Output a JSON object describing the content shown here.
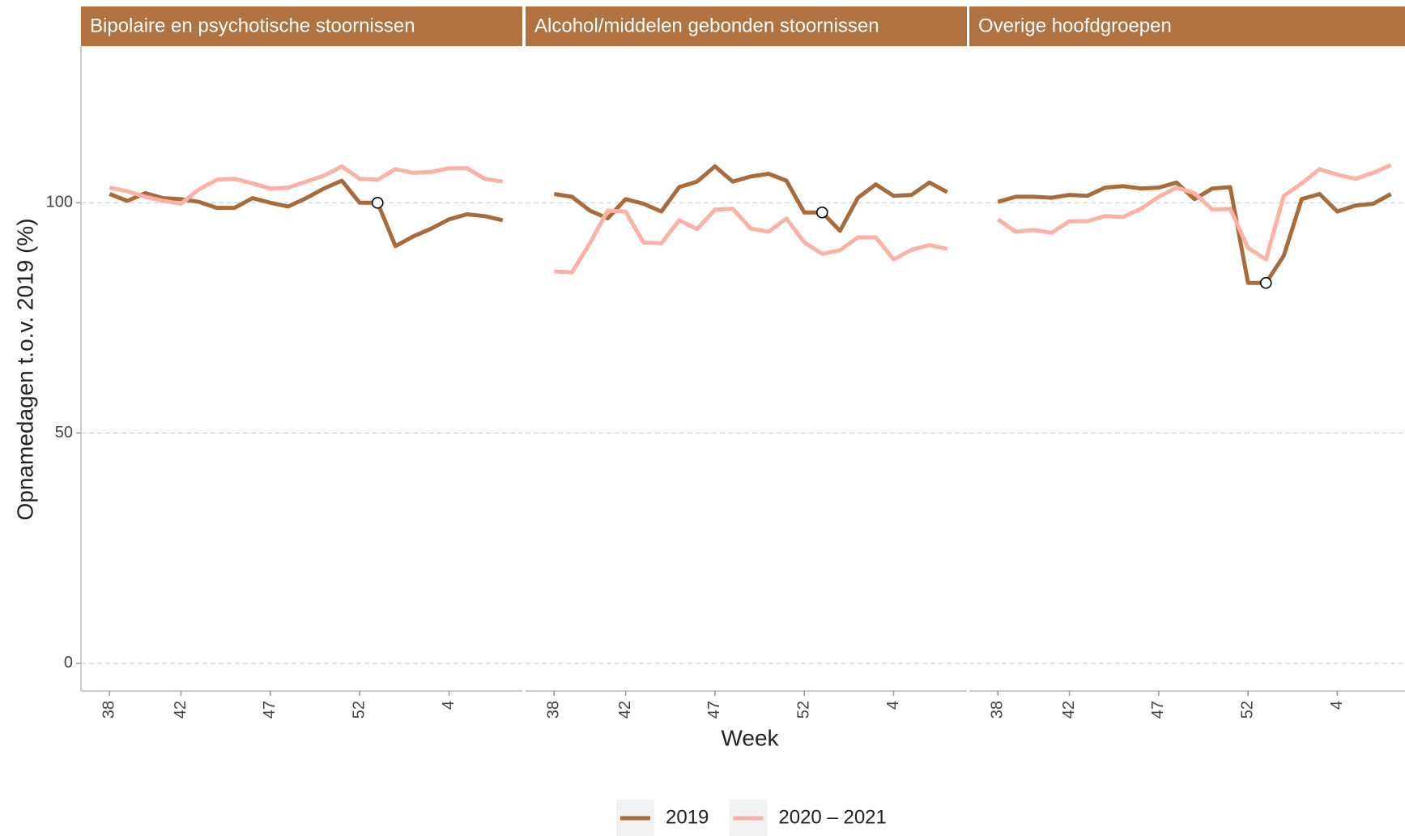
{
  "chart_data": {
    "type": "line",
    "x_label": "Week",
    "y_label": "Opnamedagen t.o.v. 2019 (%)",
    "categories": [
      "38",
      null,
      null,
      null,
      "42",
      null,
      null,
      null,
      null,
      "47",
      null,
      null,
      null,
      null,
      "52",
      null,
      null,
      null,
      null,
      "4",
      null,
      null,
      null
    ],
    "ylim": [
      -6,
      134
    ],
    "yticks": [
      0,
      50,
      100
    ],
    "grid": true,
    "legend_position": "bottom",
    "series": [
      {
        "name": "2019",
        "color": "#a86b3c"
      },
      {
        "name": "2020 – 2021",
        "color": "#fbb2a5"
      }
    ],
    "panels": [
      {
        "title": "Bipolaire en psychotische stoornissen",
        "marker": {
          "series": 0,
          "index": 15
        },
        "series": [
          {
            "values": [
              101.9,
              100.4,
              102.1,
              101,
              100.8,
              100.2,
              98.9,
              98.9,
              101,
              100,
              99.2,
              101,
              103.1,
              104.8,
              100,
              100,
              90.6,
              92.7,
              94.4,
              96.4,
              97.5,
              97.1,
              96.2
            ]
          },
          {
            "values": [
              103.3,
              102.5,
              101.3,
              100.4,
              99.8,
              102.9,
              105,
              105.2,
              104.2,
              103.1,
              103.3,
              104.6,
              105.9,
              107.9,
              105.2,
              105,
              107.3,
              106.5,
              106.7,
              107.5,
              107.5,
              105.2,
              104.6
            ]
          }
        ]
      },
      {
        "title": "Alcohol/middelen gebonden stoornissen",
        "marker": {
          "series": 0,
          "index": 15
        },
        "series": [
          {
            "values": [
              101.9,
              101.3,
              98.3,
              96.6,
              100.8,
              99.8,
              98.1,
              103.4,
              104.6,
              107.9,
              104.6,
              105.7,
              106.3,
              104.8,
              97.9,
              97.9,
              93.9,
              101.1,
              104,
              101.5,
              101.7,
              104.4,
              102.3
            ]
          },
          {
            "values": [
              85.1,
              84.9,
              91.2,
              98.3,
              98.1,
              91.4,
              91.2,
              96.2,
              94.3,
              98.5,
              98.7,
              94.4,
              93.7,
              96.6,
              91.4,
              88.9,
              89.7,
              92.5,
              92.5,
              87.7,
              89.8,
              90.8,
              90
            ]
          }
        ]
      },
      {
        "title": "Overige hoofdgroepen",
        "marker": {
          "series": 0,
          "index": 15
        },
        "series": [
          {
            "values": [
              100.2,
              101.3,
              101.3,
              101.1,
              101.7,
              101.5,
              103.3,
              103.6,
              103.1,
              103.3,
              104.4,
              100.8,
              103.1,
              103.4,
              82.6,
              82.6,
              88.5,
              100.8,
              101.9,
              98.1,
              99.4,
              99.8,
              101.9
            ]
          },
          {
            "values": [
              96.4,
              93.7,
              94.1,
              93.5,
              96,
              96,
              97.1,
              96.9,
              98.7,
              101.3,
              103.3,
              102.1,
              98.5,
              98.7,
              90.2,
              87.7,
              101.5,
              104.2,
              107.3,
              106.1,
              105.2,
              106.5,
              108.2
            ]
          }
        ]
      }
    ]
  }
}
